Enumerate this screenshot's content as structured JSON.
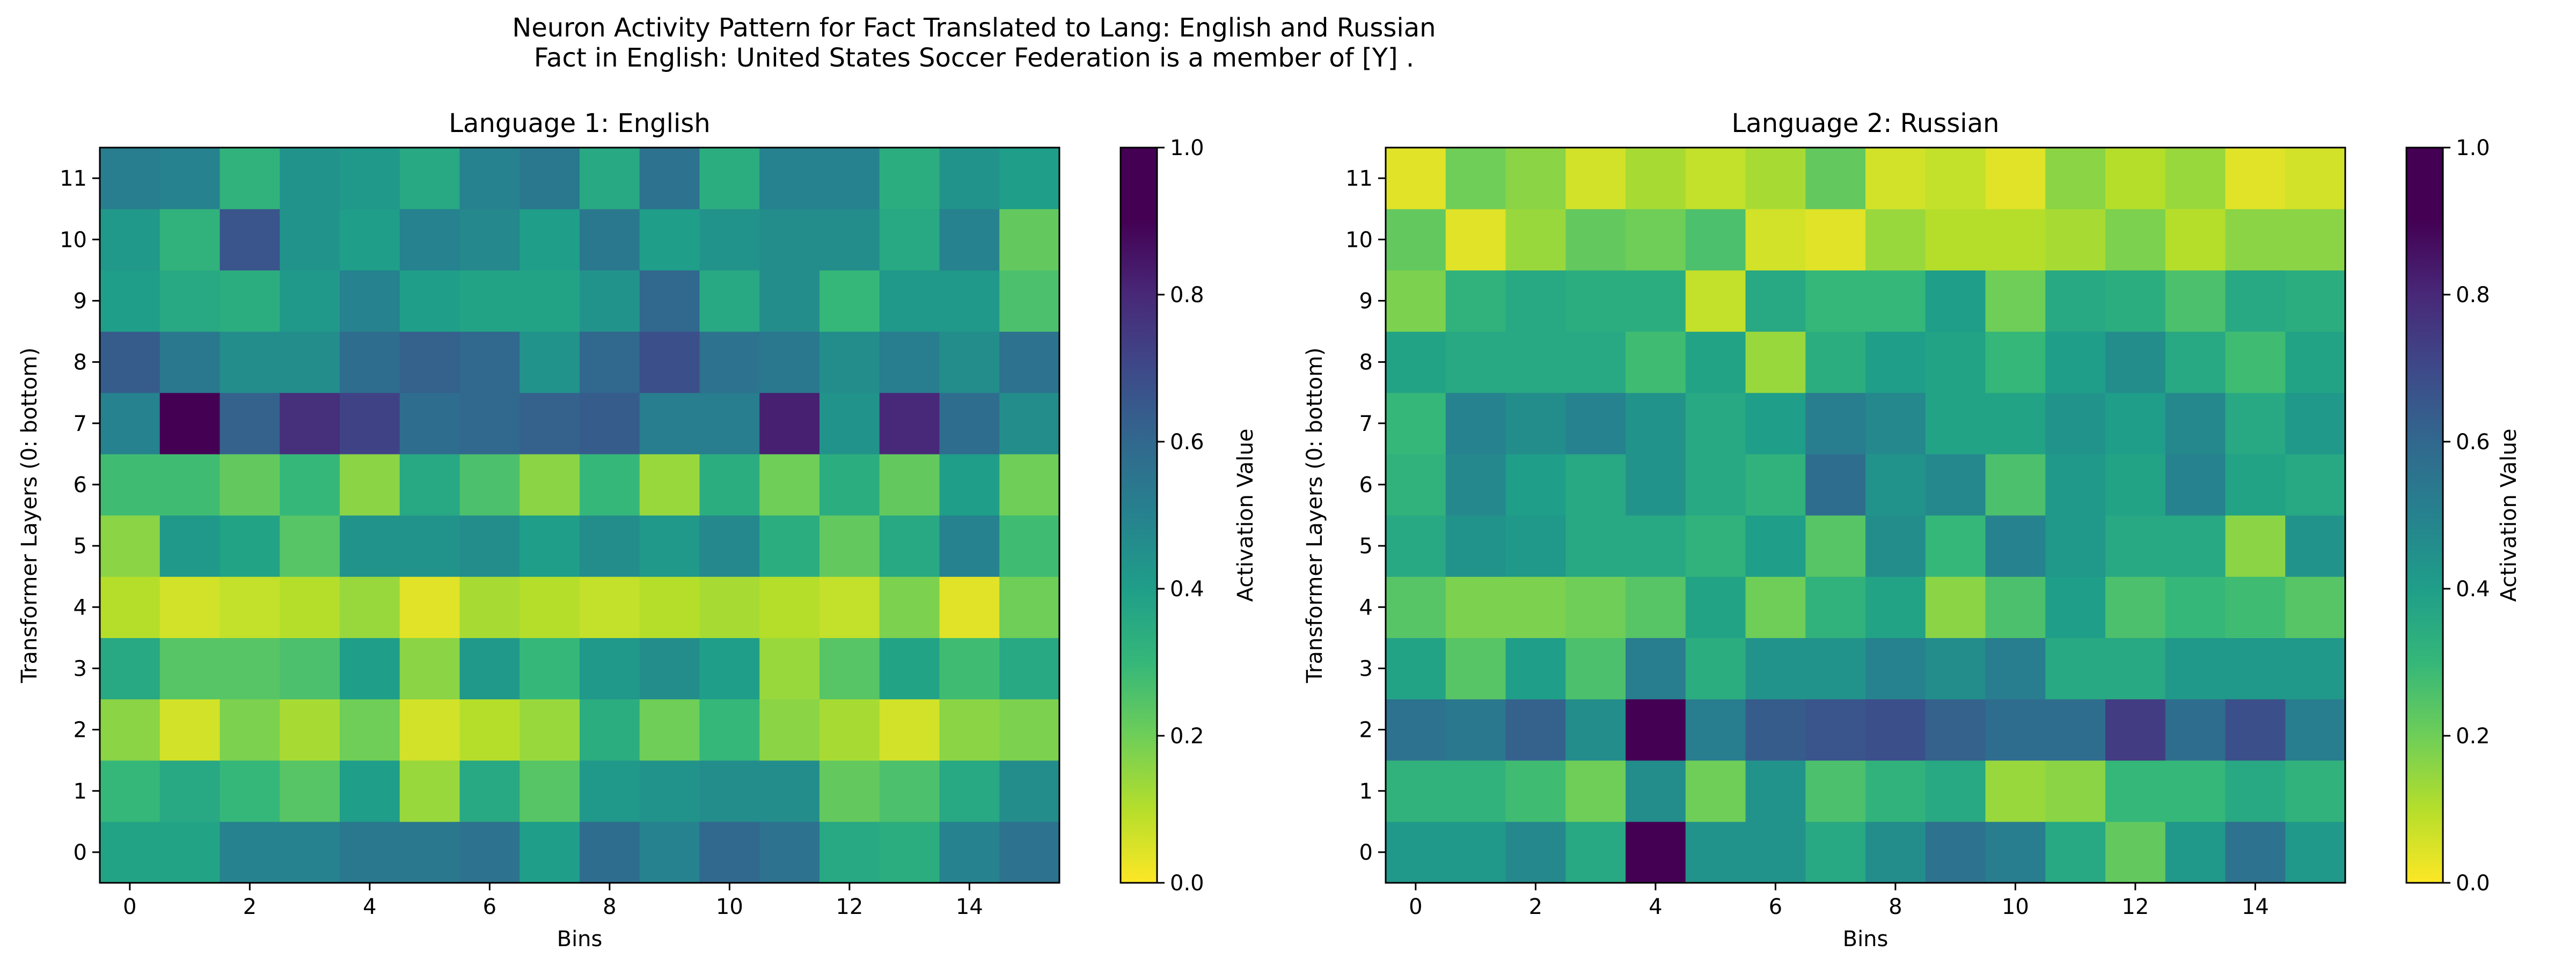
{
  "figure": {
    "title_line1": "Neuron Activity Pattern for Fact Translated to Lang: English and Russian",
    "title_line2": "Fact in English: United States Soccer Federation is a member of [Y] ."
  },
  "colormap": "viridis_r",
  "chart_data": [
    {
      "type": "heatmap",
      "title": "Language 1: English",
      "xlabel": "Bins",
      "ylabel": "Transformer Layers (0: bottom)",
      "colorbar_label": "Activation Value",
      "x_ticks": [
        0,
        2,
        4,
        6,
        8,
        10,
        12,
        14
      ],
      "y_ticks": [
        0,
        1,
        2,
        3,
        4,
        5,
        6,
        7,
        8,
        9,
        10,
        11
      ],
      "colorbar_ticks": [
        "0.0",
        "0.2",
        "0.4",
        "0.6",
        "0.8",
        "1.0"
      ],
      "vmin": 0.0,
      "vmax": 1.0,
      "n_bins": 16,
      "n_layers": 12,
      "values_by_layer": [
        [
          0.38,
          0.38,
          0.5,
          0.5,
          0.54,
          0.54,
          0.56,
          0.4,
          0.58,
          0.5,
          0.6,
          0.56,
          0.36,
          0.34,
          0.5,
          0.56
        ],
        [
          0.3,
          0.36,
          0.3,
          0.24,
          0.4,
          0.14,
          0.36,
          0.24,
          0.42,
          0.44,
          0.46,
          0.46,
          0.22,
          0.26,
          0.36,
          0.46
        ],
        [
          0.16,
          0.06,
          0.18,
          0.12,
          0.2,
          0.06,
          0.1,
          0.14,
          0.34,
          0.2,
          0.3,
          0.16,
          0.12,
          0.06,
          0.16,
          0.18
        ],
        [
          0.36,
          0.24,
          0.24,
          0.26,
          0.4,
          0.16,
          0.42,
          0.3,
          0.42,
          0.46,
          0.4,
          0.14,
          0.24,
          0.38,
          0.28,
          0.36
        ],
        [
          0.1,
          0.06,
          0.08,
          0.1,
          0.14,
          0.04,
          0.12,
          0.1,
          0.08,
          0.1,
          0.12,
          0.1,
          0.08,
          0.18,
          0.04,
          0.2
        ],
        [
          0.16,
          0.42,
          0.38,
          0.24,
          0.44,
          0.44,
          0.46,
          0.4,
          0.46,
          0.42,
          0.48,
          0.34,
          0.22,
          0.36,
          0.5,
          0.28
        ],
        [
          0.28,
          0.28,
          0.22,
          0.3,
          0.16,
          0.36,
          0.26,
          0.16,
          0.3,
          0.14,
          0.34,
          0.2,
          0.34,
          0.22,
          0.4,
          0.2
        ],
        [
          0.5,
          0.98,
          0.62,
          0.78,
          0.72,
          0.58,
          0.6,
          0.62,
          0.64,
          0.52,
          0.52,
          0.82,
          0.44,
          0.8,
          0.58,
          0.46
        ],
        [
          0.64,
          0.54,
          0.46,
          0.46,
          0.58,
          0.62,
          0.6,
          0.44,
          0.6,
          0.68,
          0.56,
          0.54,
          0.46,
          0.52,
          0.46,
          0.56
        ],
        [
          0.4,
          0.36,
          0.34,
          0.42,
          0.5,
          0.4,
          0.38,
          0.38,
          0.44,
          0.6,
          0.36,
          0.46,
          0.3,
          0.42,
          0.42,
          0.26
        ],
        [
          0.42,
          0.32,
          0.66,
          0.44,
          0.4,
          0.5,
          0.48,
          0.4,
          0.54,
          0.4,
          0.44,
          0.46,
          0.46,
          0.36,
          0.5,
          0.22
        ],
        [
          0.52,
          0.5,
          0.32,
          0.44,
          0.42,
          0.36,
          0.5,
          0.54,
          0.36,
          0.56,
          0.34,
          0.5,
          0.5,
          0.34,
          0.44,
          0.4
        ]
      ]
    },
    {
      "type": "heatmap",
      "title": "Language 2: Russian",
      "xlabel": "Bins",
      "ylabel": "Transformer Layers (0: bottom)",
      "colorbar_label": "Activation Value",
      "x_ticks": [
        0,
        2,
        4,
        6,
        8,
        10,
        12,
        14
      ],
      "y_ticks": [
        0,
        1,
        2,
        3,
        4,
        5,
        6,
        7,
        8,
        9,
        10,
        11
      ],
      "colorbar_ticks": [
        "0.0",
        "0.2",
        "0.4",
        "0.6",
        "0.8",
        "1.0"
      ],
      "vmin": 0.0,
      "vmax": 1.0,
      "n_bins": 16,
      "n_layers": 12,
      "values_by_layer": [
        [
          0.42,
          0.42,
          0.48,
          0.36,
          0.92,
          0.44,
          0.44,
          0.36,
          0.46,
          0.56,
          0.52,
          0.36,
          0.22,
          0.42,
          0.56,
          0.42
        ],
        [
          0.32,
          0.32,
          0.28,
          0.2,
          0.46,
          0.2,
          0.44,
          0.26,
          0.32,
          0.36,
          0.14,
          0.16,
          0.3,
          0.3,
          0.36,
          0.32
        ],
        [
          0.56,
          0.54,
          0.62,
          0.46,
          0.98,
          0.52,
          0.64,
          0.66,
          0.68,
          0.62,
          0.58,
          0.58,
          0.74,
          0.58,
          0.68,
          0.52
        ],
        [
          0.38,
          0.24,
          0.4,
          0.26,
          0.52,
          0.34,
          0.44,
          0.44,
          0.5,
          0.46,
          0.52,
          0.36,
          0.36,
          0.42,
          0.42,
          0.42
        ],
        [
          0.24,
          0.18,
          0.18,
          0.2,
          0.24,
          0.38,
          0.2,
          0.32,
          0.38,
          0.16,
          0.26,
          0.4,
          0.26,
          0.3,
          0.28,
          0.24
        ],
        [
          0.36,
          0.44,
          0.42,
          0.36,
          0.36,
          0.32,
          0.4,
          0.24,
          0.46,
          0.3,
          0.5,
          0.42,
          0.36,
          0.36,
          0.16,
          0.44
        ],
        [
          0.32,
          0.48,
          0.4,
          0.36,
          0.44,
          0.36,
          0.32,
          0.58,
          0.44,
          0.48,
          0.26,
          0.42,
          0.38,
          0.5,
          0.38,
          0.36
        ],
        [
          0.3,
          0.5,
          0.46,
          0.5,
          0.44,
          0.36,
          0.4,
          0.52,
          0.48,
          0.38,
          0.38,
          0.44,
          0.4,
          0.48,
          0.36,
          0.42
        ],
        [
          0.38,
          0.36,
          0.36,
          0.36,
          0.28,
          0.38,
          0.14,
          0.34,
          0.4,
          0.38,
          0.3,
          0.4,
          0.46,
          0.36,
          0.28,
          0.38
        ],
        [
          0.18,
          0.32,
          0.36,
          0.34,
          0.34,
          0.08,
          0.36,
          0.3,
          0.3,
          0.4,
          0.2,
          0.36,
          0.34,
          0.26,
          0.36,
          0.34
        ],
        [
          0.22,
          0.04,
          0.14,
          0.22,
          0.2,
          0.26,
          0.06,
          0.04,
          0.14,
          0.1,
          0.1,
          0.12,
          0.18,
          0.1,
          0.16,
          0.16
        ],
        [
          0.04,
          0.2,
          0.16,
          0.06,
          0.12,
          0.08,
          0.12,
          0.22,
          0.06,
          0.08,
          0.04,
          0.16,
          0.1,
          0.14,
          0.04,
          0.06
        ]
      ]
    }
  ]
}
